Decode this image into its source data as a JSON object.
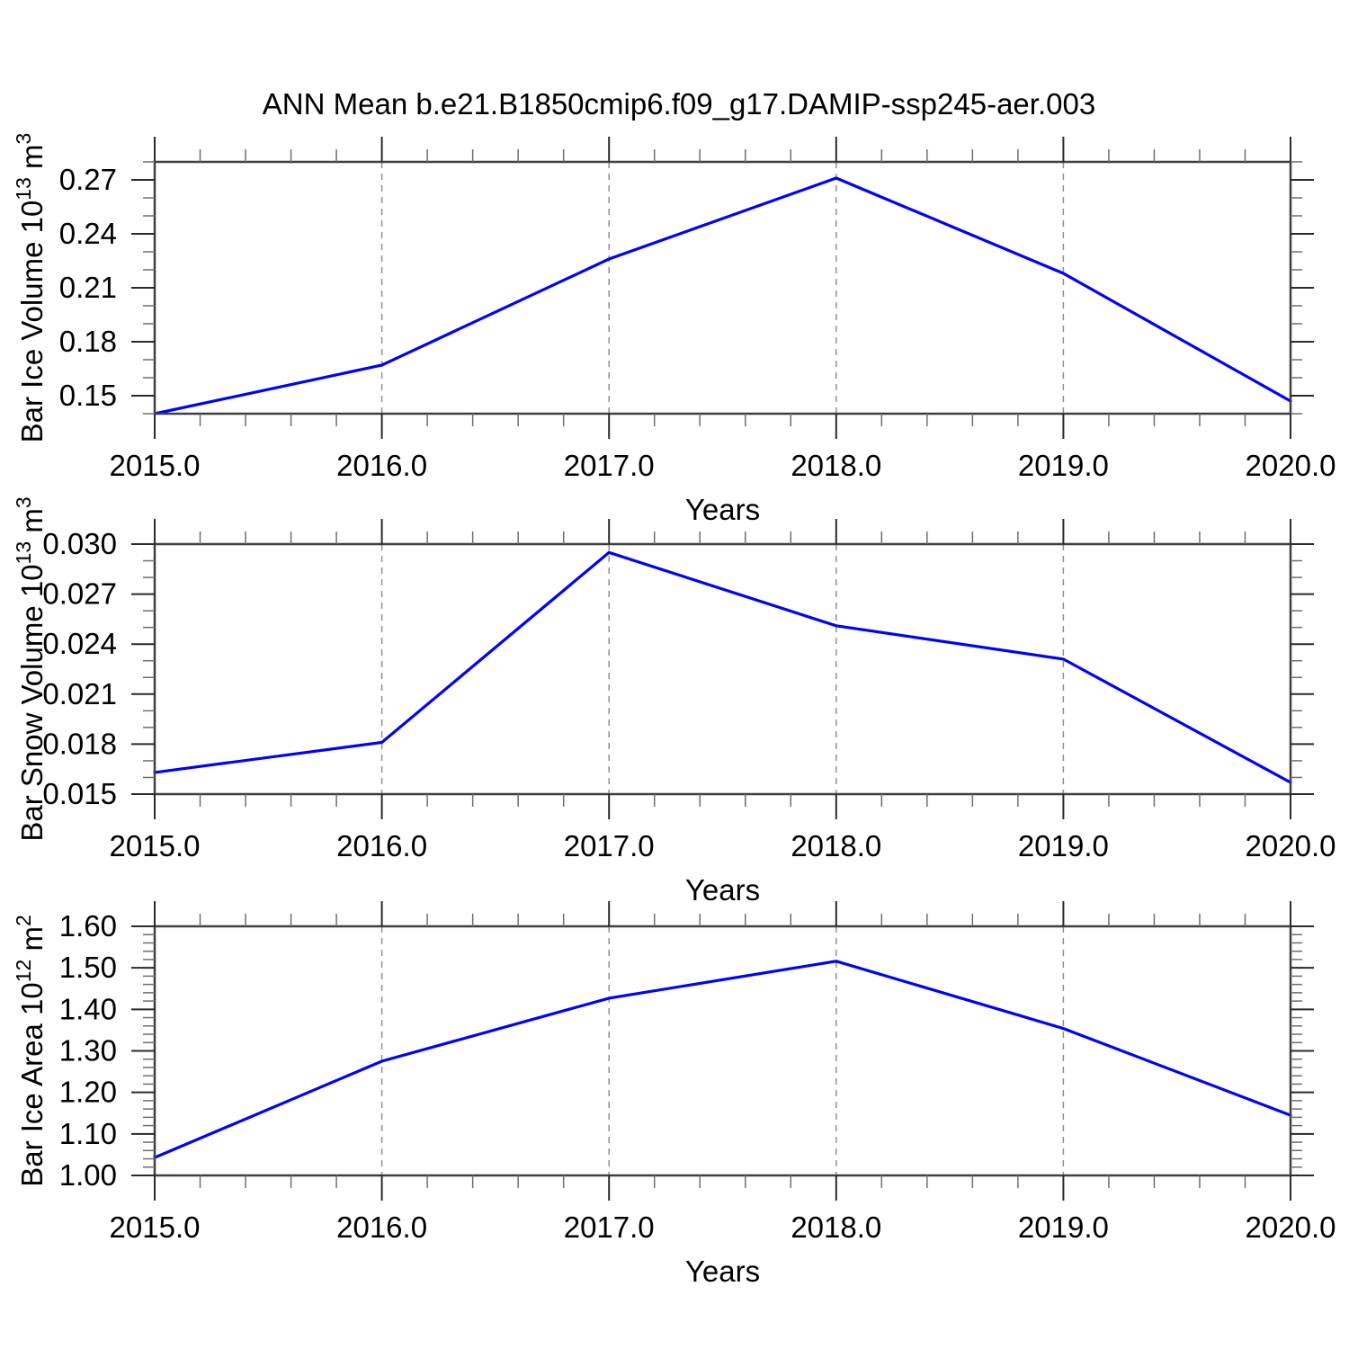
{
  "title": "ANN Mean b.e21.B1850cmip6.f09_g17.DAMIP-ssp245-aer.003",
  "style": {
    "line_color": "#0000ff",
    "frame_color": "#3f3f3f",
    "major_tick_color": "#2a2a2a",
    "minor_tick_color": "#6e6e6e",
    "grid_color": "#909090",
    "text_color": "#000000"
  },
  "x_axis": {
    "label": "Years",
    "xlim": [
      2015.0,
      2020.0
    ],
    "tick_values": [
      2015.0,
      2016.0,
      2017.0,
      2018.0,
      2019.0,
      2020.0
    ],
    "tick_labels": [
      "2015.0",
      "2016.0",
      "2017.0",
      "2018.0",
      "2019.0",
      "2020.0"
    ],
    "minor_step": 0.2,
    "grid_years": [
      2016.0,
      2017.0,
      2018.0,
      2019.0
    ]
  },
  "chart_data": [
    {
      "type": "line",
      "name": "bar-ice-volume",
      "ylabel": "Bar Ice Volume 10^13 m^3",
      "ylabel_parts": [
        {
          "t": "Bar Ice Volume 10"
        },
        {
          "sup": "13"
        },
        {
          "t": " m"
        },
        {
          "sup": "3"
        }
      ],
      "xlabel": "Years",
      "x": [
        2015.0,
        2016.0,
        2017.0,
        2018.0,
        2019.0,
        2020.0
      ],
      "values": [
        0.14,
        0.167,
        0.226,
        0.271,
        0.218,
        0.147
      ],
      "ylim": [
        0.14,
        0.28
      ],
      "yticks": [
        {
          "v": 0.15,
          "label": "0.15"
        },
        {
          "v": 0.18,
          "label": "0.18"
        },
        {
          "v": 0.21,
          "label": "0.21"
        },
        {
          "v": 0.24,
          "label": "0.24"
        },
        {
          "v": 0.27,
          "label": "0.27"
        }
      ],
      "y_minor_step": 0.01,
      "grid": "x-dashed"
    },
    {
      "type": "line",
      "name": "bar-snow-volume",
      "ylabel": "Bar Snow Volume 10^13 m^3",
      "ylabel_parts": [
        {
          "t": "Bar Snow Volume 10"
        },
        {
          "sup": "13"
        },
        {
          "t": " m"
        },
        {
          "sup": "3"
        }
      ],
      "xlabel": "Years",
      "x": [
        2015.0,
        2016.0,
        2017.0,
        2018.0,
        2019.0,
        2020.0
      ],
      "values": [
        0.0163,
        0.0181,
        0.0295,
        0.0251,
        0.0231,
        0.0157
      ],
      "ylim": [
        0.015,
        0.03
      ],
      "yticks": [
        {
          "v": 0.015,
          "label": "0.015"
        },
        {
          "v": 0.018,
          "label": "0.018"
        },
        {
          "v": 0.021,
          "label": "0.021"
        },
        {
          "v": 0.024,
          "label": "0.024"
        },
        {
          "v": 0.027,
          "label": "0.027"
        },
        {
          "v": 0.03,
          "label": "0.030"
        }
      ],
      "y_minor_step": 0.001,
      "grid": "x-dashed"
    },
    {
      "type": "line",
      "name": "bar-ice-area",
      "ylabel": "Bar Ice Area 10^12 m^2",
      "ylabel_parts": [
        {
          "t": "Bar Ice Area 10"
        },
        {
          "sup": "12"
        },
        {
          "t": " m"
        },
        {
          "sup": "2"
        }
      ],
      "xlabel": "Years",
      "x": [
        2015.0,
        2016.0,
        2017.0,
        2018.0,
        2019.0,
        2020.0
      ],
      "values": [
        1.043,
        1.275,
        1.427,
        1.516,
        1.354,
        1.145
      ],
      "ylim": [
        1.0,
        1.6
      ],
      "yticks": [
        {
          "v": 1.0,
          "label": "1.00"
        },
        {
          "v": 1.1,
          "label": "1.10"
        },
        {
          "v": 1.2,
          "label": "1.20"
        },
        {
          "v": 1.3,
          "label": "1.30"
        },
        {
          "v": 1.4,
          "label": "1.40"
        },
        {
          "v": 1.5,
          "label": "1.50"
        },
        {
          "v": 1.6,
          "label": "1.60"
        }
      ],
      "y_minor_step": 0.02,
      "grid": "x-dashed"
    }
  ]
}
